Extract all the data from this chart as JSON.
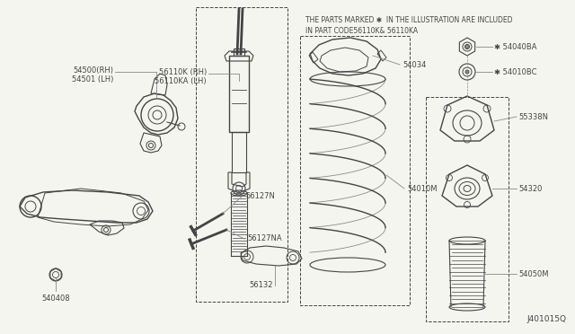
{
  "bg_color": "#f5f5f0",
  "fig_width": 6.4,
  "fig_height": 3.72,
  "dpi": 100,
  "header_text_line1": "THE PARTS MARKED ✱  IN THE ILLUSTRATION ARE INCLUDED",
  "header_text_line2": "IN PART CODE56110K& 56110KA",
  "diagram_id": "J401015Q",
  "gray": "#444444",
  "lgray": "#888888"
}
